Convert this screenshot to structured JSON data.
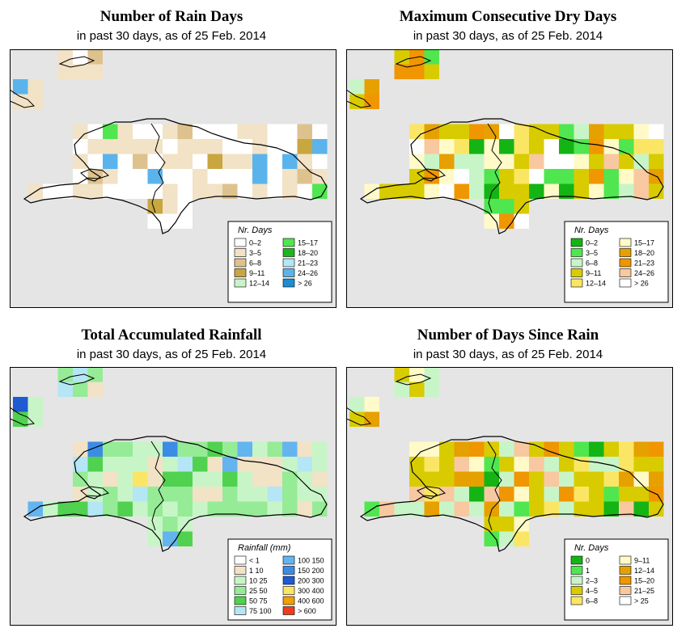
{
  "panels": [
    {
      "title": "Number of Rain Days",
      "subtitle": "in past 30 days, as of  25 Feb. 2014",
      "legend": {
        "title": "Nr. Days",
        "classes": [
          {
            "label": "0–2",
            "color": "#ffffff"
          },
          {
            "label": "3–5",
            "color": "#f2e2c6"
          },
          {
            "label": "6–8",
            "color": "#dec28e"
          },
          {
            "label": "9–11",
            "color": "#c8a640"
          },
          {
            "label": "12–14",
            "color": "#c8f5c8"
          },
          {
            "label": "15–17",
            "color": "#50e650"
          },
          {
            "label": "18–20",
            "color": "#1eb41e"
          },
          {
            "label": "21–23",
            "color": "#b4e6f5"
          },
          {
            "label": "24–26",
            "color": "#5ab4eb"
          },
          {
            "label": "> 26",
            "color": "#1e8cd2"
          }
        ]
      }
    },
    {
      "title": "Maximum Consecutive Dry Days",
      "subtitle": "in past 30 days, as of  25 Feb. 2014",
      "legend": {
        "title": "Nr. Days",
        "classes": [
          {
            "label": "0–2",
            "color": "#14b414"
          },
          {
            "label": "3–5",
            "color": "#50e650"
          },
          {
            "label": "6–8",
            "color": "#c8f5c8"
          },
          {
            "label": "9–11",
            "color": "#d8cc00"
          },
          {
            "label": "12–14",
            "color": "#fae664"
          },
          {
            "label": "15–17",
            "color": "#fffac8"
          },
          {
            "label": "18–20",
            "color": "#e6a000"
          },
          {
            "label": "21–23",
            "color": "#f09600"
          },
          {
            "label": "24–26",
            "color": "#f8c8a0"
          },
          {
            "label": "> 26",
            "color": "#ffffff"
          }
        ]
      }
    },
    {
      "title": "Total Accumulated Rainfall",
      "subtitle": "in past 30 days, as of  25 Feb. 2014",
      "legend": {
        "title": "Rainfall (mm)",
        "classes": [
          {
            "label": "< 1",
            "color": "#ffffff"
          },
          {
            "label": "1    10",
            "color": "#f2e2c6"
          },
          {
            "label": "10    25",
            "color": "#c8f5c8"
          },
          {
            "label": "25    50",
            "color": "#96eb96"
          },
          {
            "label": "50    75",
            "color": "#50d250"
          },
          {
            "label": "75    100",
            "color": "#b4e6f5"
          },
          {
            "label": "100    150",
            "color": "#64b4f0"
          },
          {
            "label": "150    200",
            "color": "#3c8ce6"
          },
          {
            "label": "200    300",
            "color": "#1e5ad2"
          },
          {
            "label": "300    400",
            "color": "#fae664"
          },
          {
            "label": "400    600",
            "color": "#f0a000"
          },
          {
            "label": "> 600",
            "color": "#f03c1e"
          }
        ]
      }
    },
    {
      "title": "Number of Days Since Rain",
      "subtitle": "in past 30 days, as of  25 Feb. 2014",
      "legend": {
        "title": "Nr. Days",
        "classes": [
          {
            "label": "0",
            "color": "#14b414"
          },
          {
            "label": "1",
            "color": "#50e650"
          },
          {
            "label": "2–3",
            "color": "#c8f5c8"
          },
          {
            "label": "4–5",
            "color": "#d8cc00"
          },
          {
            "label": "6–8",
            "color": "#fae664"
          },
          {
            "label": "9–11",
            "color": "#fffac8"
          },
          {
            "label": "12–14",
            "color": "#e6a000"
          },
          {
            "label": "15–20",
            "color": "#f09600"
          },
          {
            "label": "21–25",
            "color": "#f8c8a0"
          },
          {
            "label": "> 25",
            "color": "#ffffff"
          }
        ]
      }
    }
  ]
}
